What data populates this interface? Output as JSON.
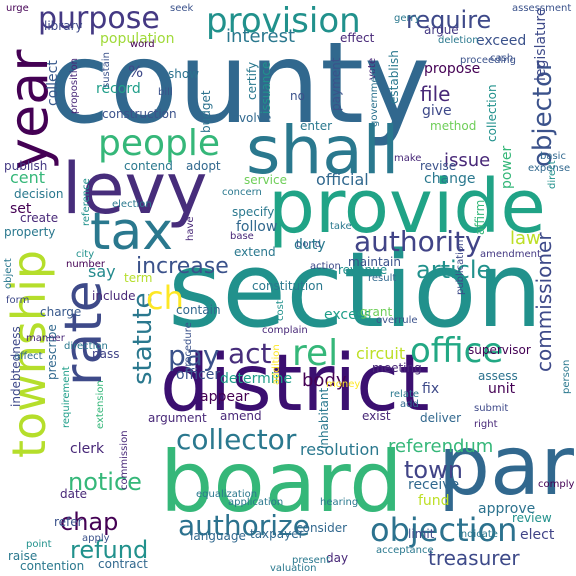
{
  "cloud": {
    "words": [
      {
        "text": "county",
        "color": "#31688e"
      },
      {
        "text": "section",
        "color": "#21918c"
      },
      {
        "text": "district",
        "color": "#3b0f70"
      },
      {
        "text": "board",
        "color": "#35b779"
      },
      {
        "text": "provide",
        "color": "#20a386"
      },
      {
        "text": "shall",
        "color": "#2a788e"
      },
      {
        "text": "par",
        "color": "#31688e"
      },
      {
        "text": "levy",
        "color": "#472d7b"
      },
      {
        "text": "township",
        "color": "#b5de2b"
      },
      {
        "text": "rate",
        "color": "#3e4a89"
      },
      {
        "text": "year",
        "color": "#440154"
      },
      {
        "text": "tax",
        "color": "#2a788e"
      },
      {
        "text": "people",
        "color": "#35b779"
      },
      {
        "text": "provision",
        "color": "#21918c"
      },
      {
        "text": "purpose",
        "color": "#443983"
      },
      {
        "text": "objection",
        "color": "#2c728e"
      },
      {
        "text": "authority",
        "color": "#414487"
      },
      {
        "text": "office",
        "color": "#22a884"
      },
      {
        "text": "collector",
        "color": "#2a788e"
      },
      {
        "text": "rel",
        "color": "#35b779"
      },
      {
        "text": "authorize",
        "color": "#2c728e"
      },
      {
        "text": "statute",
        "color": "#2a788e"
      },
      {
        "text": "commissioner",
        "color": "#3e4a89"
      },
      {
        "text": "increase",
        "color": "#3b528b"
      },
      {
        "text": "article",
        "color": "#21918c"
      },
      {
        "text": "require",
        "color": "#3e4989"
      },
      {
        "text": "objector",
        "color": "#3b528b"
      },
      {
        "text": "refund",
        "color": "#21918c"
      },
      {
        "text": "act",
        "color": "#472d7b"
      },
      {
        "text": "chap",
        "color": "#440154"
      },
      {
        "text": "town",
        "color": "#414487"
      },
      {
        "text": "treasurer",
        "color": "#3e4a89"
      },
      {
        "text": "pay",
        "color": "#3b528b"
      },
      {
        "text": "referendum",
        "color": "#35b779"
      },
      {
        "text": "notice",
        "color": "#35b779"
      },
      {
        "text": "ch",
        "color": "#fde725"
      },
      {
        "text": "law",
        "color": "#bddf26"
      },
      {
        "text": "circuit",
        "color": "#bddf26"
      },
      {
        "text": "body",
        "color": "#440154"
      },
      {
        "text": "interest",
        "color": "#2a788e"
      },
      {
        "text": "file",
        "color": "#482878"
      },
      {
        "text": "issue",
        "color": "#482878"
      },
      {
        "text": "population",
        "color": "#a0da39"
      },
      {
        "text": "legislature",
        "color": "#3e4a89"
      },
      {
        "text": "cent",
        "color": "#35b779"
      },
      {
        "text": "resolution",
        "color": "#2a788e"
      },
      {
        "text": "official",
        "color": "#31688e"
      },
      {
        "text": "collect",
        "color": "#38598c"
      },
      {
        "text": "record",
        "color": "#1f9e89"
      },
      {
        "text": "fund",
        "color": "#bddf26"
      },
      {
        "text": "approve",
        "color": "#2c728e"
      },
      {
        "text": "elect",
        "color": "#414487"
      },
      {
        "text": "say",
        "color": "#238a8d"
      },
      {
        "text": "excess",
        "color": "#1f9e89"
      },
      {
        "text": "follow",
        "color": "#31688e"
      },
      {
        "text": "contend",
        "color": "#2a788e"
      },
      {
        "text": "adopt",
        "color": "#31688e"
      },
      {
        "text": "set",
        "color": "#440154"
      },
      {
        "text": "service",
        "color": "#6ece58"
      },
      {
        "text": "extend",
        "color": "#2a788e"
      },
      {
        "text": "fix",
        "color": "#3e4a89"
      },
      {
        "text": "unit",
        "color": "#440154"
      },
      {
        "text": "clerk",
        "color": "#482878"
      },
      {
        "text": "receive",
        "color": "#31688e"
      },
      {
        "text": "include",
        "color": "#482878"
      },
      {
        "text": "decision",
        "color": "#2a788e"
      },
      {
        "text": "property",
        "color": "#2a788e"
      },
      {
        "text": "create",
        "color": "#482878"
      },
      {
        "text": "publish",
        "color": "#443983"
      },
      {
        "text": "grant",
        "color": "#6ece58"
      },
      {
        "text": "supervisor",
        "color": "#440154"
      },
      {
        "text": "amend",
        "color": "#482878"
      },
      {
        "text": "determine",
        "color": "#1f9e89"
      },
      {
        "text": "officer",
        "color": "#3b528b"
      },
      {
        "text": "power",
        "color": "#35b779"
      },
      {
        "text": "change",
        "color": "#2a788e"
      },
      {
        "text": "certify",
        "color": "#2a788e"
      },
      {
        "text": "issuance",
        "color": "#21918c"
      },
      {
        "text": "exceed",
        "color": "#3b528b"
      },
      {
        "text": "propose",
        "color": "#440154"
      },
      {
        "text": "give",
        "color": "#3e4989"
      },
      {
        "text": "establish",
        "color": "#2a788e"
      },
      {
        "text": "vote",
        "color": "#482878"
      },
      {
        "text": "argue",
        "color": "#443983"
      },
      {
        "text": "effect",
        "color": "#482878"
      },
      {
        "text": "library",
        "color": "#3e4989"
      },
      {
        "text": "construction",
        "color": "#3b528b"
      },
      {
        "text": "involve",
        "color": "#31688e"
      },
      {
        "text": "enter",
        "color": "#2a788e"
      },
      {
        "text": "payment",
        "color": "#3b528b"
      },
      {
        "text": "budget",
        "color": "#2c728e"
      },
      {
        "text": "show",
        "color": "#2c728e"
      },
      {
        "text": "no",
        "color": "#3b528b"
      },
      {
        "text": "method",
        "color": "#6ece58"
      },
      {
        "text": "revise",
        "color": "#3b528b"
      },
      {
        "text": "word",
        "color": "#440154"
      },
      {
        "text": "make",
        "color": "#482878"
      },
      {
        "text": "collection",
        "color": "#21918c"
      },
      {
        "text": "%",
        "color": "#3e4989"
      },
      {
        "text": "charge",
        "color": "#38598c"
      },
      {
        "text": "term",
        "color": "#b5de2b"
      },
      {
        "text": "base",
        "color": "#482878"
      },
      {
        "text": "bond",
        "color": "#3b528b"
      },
      {
        "text": "duty",
        "color": "#2a788e"
      },
      {
        "text": "take",
        "color": "#2a788e"
      },
      {
        "text": "specify",
        "color": "#2a788e"
      },
      {
        "text": "contain",
        "color": "#31688e"
      },
      {
        "text": "constitution",
        "color": "#2a788e"
      },
      {
        "text": "revenue",
        "color": "#21918c"
      },
      {
        "text": "maintain",
        "color": "#3b528b"
      },
      {
        "text": "action",
        "color": "#3e4989"
      },
      {
        "text": "result",
        "color": "#31688e"
      },
      {
        "text": "amendment",
        "color": "#443983"
      },
      {
        "text": "affirm",
        "color": "#35b779"
      },
      {
        "text": "direct",
        "color": "#21918c"
      },
      {
        "text": "pass",
        "color": "#414487"
      },
      {
        "text": "requirement",
        "color": "#1f9e89"
      },
      {
        "text": "meeting",
        "color": "#482878"
      },
      {
        "text": "assess",
        "color": "#2c728e"
      },
      {
        "text": "exist",
        "color": "#482878"
      },
      {
        "text": "argument",
        "color": "#482878"
      },
      {
        "text": "deliver",
        "color": "#31688e"
      },
      {
        "text": "appear",
        "color": "#440154"
      },
      {
        "text": "inhabitant",
        "color": "#2a788e"
      },
      {
        "text": "prescribe",
        "color": "#31688e"
      },
      {
        "text": "indebtedness",
        "color": "#3e4989"
      },
      {
        "text": "language",
        "color": "#31688e"
      },
      {
        "text": "taxpayer",
        "color": "#31688e"
      },
      {
        "text": "consider",
        "color": "#31688e"
      },
      {
        "text": "limit",
        "color": "#3e4989"
      },
      {
        "text": "review",
        "color": "#21918c"
      },
      {
        "text": "date",
        "color": "#482878"
      },
      {
        "text": "refer",
        "color": "#3b528b"
      },
      {
        "text": "contract",
        "color": "#31688e"
      },
      {
        "text": "raise",
        "color": "#2a788e"
      },
      {
        "text": "contention",
        "color": "#2a788e"
      },
      {
        "text": "day",
        "color": "#482878"
      },
      {
        "text": "commission",
        "color": "#482878"
      },
      {
        "text": "extension",
        "color": "#35b779"
      },
      {
        "text": "procedure",
        "color": "#3b528b"
      },
      {
        "text": "addition",
        "color": "#fde725"
      },
      {
        "text": "money",
        "color": "#fde725"
      },
      {
        "text": "cost",
        "color": "#21918c"
      },
      {
        "text": "submit",
        "color": "#3e4989"
      },
      {
        "text": "right",
        "color": "#482878"
      },
      {
        "text": "relate",
        "color": "#2a788e"
      },
      {
        "text": "add",
        "color": "#31688e"
      },
      {
        "text": "person",
        "color": "#2a788e"
      },
      {
        "text": "publication",
        "color": "#3e4989"
      },
      {
        "text": "government",
        "color": "#2c728e"
      },
      {
        "text": "proceeding",
        "color": "#3b528b"
      },
      {
        "text": "sustain",
        "color": "#3b528b"
      },
      {
        "text": "proposition",
        "color": "#482878"
      },
      {
        "text": "urge",
        "color": "#440154"
      },
      {
        "text": "seek",
        "color": "#3b528b"
      },
      {
        "text": "assessment",
        "color": "#3b528b"
      },
      {
        "text": "cash",
        "color": "#3b528b"
      },
      {
        "text": "basic",
        "color": "#31688e"
      },
      {
        "text": "expense",
        "color": "#31688e"
      },
      {
        "text": "overrule",
        "color": "#3b528b"
      },
      {
        "text": "complain",
        "color": "#482878"
      },
      {
        "text": "acceptance",
        "color": "#2a788e"
      },
      {
        "text": "indicate",
        "color": "#2a788e"
      },
      {
        "text": "present",
        "color": "#2a788e"
      },
      {
        "text": "equalization",
        "color": "#2a788e"
      },
      {
        "text": "application",
        "color": "#2a788e"
      },
      {
        "text": "hearing",
        "color": "#2a788e"
      },
      {
        "text": "comply",
        "color": "#440154"
      },
      {
        "text": "point",
        "color": "#21918c"
      },
      {
        "text": "form",
        "color": "#3e4989"
      },
      {
        "text": "number",
        "color": "#440154"
      },
      {
        "text": "affect",
        "color": "#31688e"
      },
      {
        "text": "manner",
        "color": "#482878"
      },
      {
        "text": "direction",
        "color": "#2a788e"
      },
      {
        "text": "city",
        "color": "#21918c"
      },
      {
        "text": "concern",
        "color": "#2a788e"
      },
      {
        "text": "election",
        "color": "#2a788e"
      },
      {
        "text": "reference",
        "color": "#21918c"
      },
      {
        "text": "have",
        "color": "#482878"
      },
      {
        "text": "bill",
        "color": "#3b528b"
      },
      {
        "text": "apply",
        "color": "#3b528b"
      },
      {
        "text": "object",
        "color": "#2a788e"
      },
      {
        "text": "gerry",
        "color": "#2a788e"
      },
      {
        "text": "deletion",
        "color": "#2a788e"
      },
      {
        "text": "valuation",
        "color": "#2a788e"
      }
    ]
  }
}
